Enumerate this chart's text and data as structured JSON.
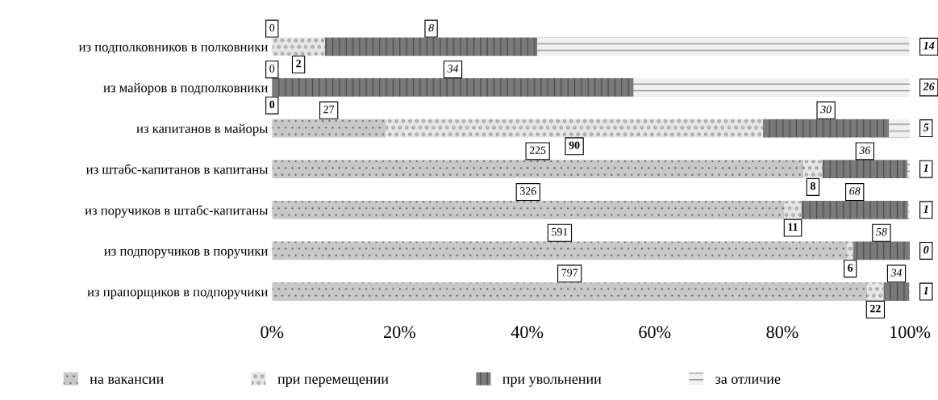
{
  "chart_data": {
    "type": "bar",
    "orientation": "horizontal",
    "stacked": true,
    "categories": [
      "из подполковников в полковники",
      "из майоров в подполковники",
      "из капитанов в майоры",
      "из штабс-капитанов в капитаны",
      "из поручиков в штабс-капитаны",
      "из подпоручиков в поручики",
      "из прапорщиков в подпоручики"
    ],
    "series": [
      {
        "name": "на вакансии",
        "color": "#c8c8c8",
        "values": [
          0,
          0,
          17.8,
          83.3,
          80.3,
          90.2,
          93.3
        ]
      },
      {
        "name": "при перемещении",
        "color": "#e6e6e6",
        "values": [
          8.3,
          0,
          59.2,
          3.0,
          2.7,
          0.9,
          2.6
        ]
      },
      {
        "name": "при увольнении",
        "color": "#7a7a7a",
        "values": [
          33.3,
          56.7,
          19.7,
          13.3,
          16.7,
          8.9,
          4.0
        ]
      },
      {
        "name": "за отличие",
        "color": "#f0f0f0",
        "values": [
          58.3,
          43.3,
          3.3,
          0.4,
          0.2,
          0,
          0.1
        ]
      }
    ],
    "annotations": [
      "0",
      "0",
      "27",
      "225",
      "326",
      "591",
      "797",
      "2",
      "0",
      "90",
      "8",
      "11",
      "6",
      "22",
      "8",
      "34",
      "30",
      "36",
      "68",
      "58",
      "34",
      "14",
      "26",
      "5",
      "1",
      "1",
      "0",
      "1"
    ],
    "xlim": [
      0,
      100
    ],
    "xticks": [
      {
        "value": 0,
        "label": "0%"
      },
      {
        "value": 20,
        "label": "20%"
      },
      {
        "value": 40,
        "label": "40%"
      },
      {
        "value": 60,
        "label": "60%"
      },
      {
        "value": 80,
        "label": "80%"
      },
      {
        "value": 100,
        "label": "100%"
      }
    ],
    "grid": false,
    "legend": "bottom"
  }
}
